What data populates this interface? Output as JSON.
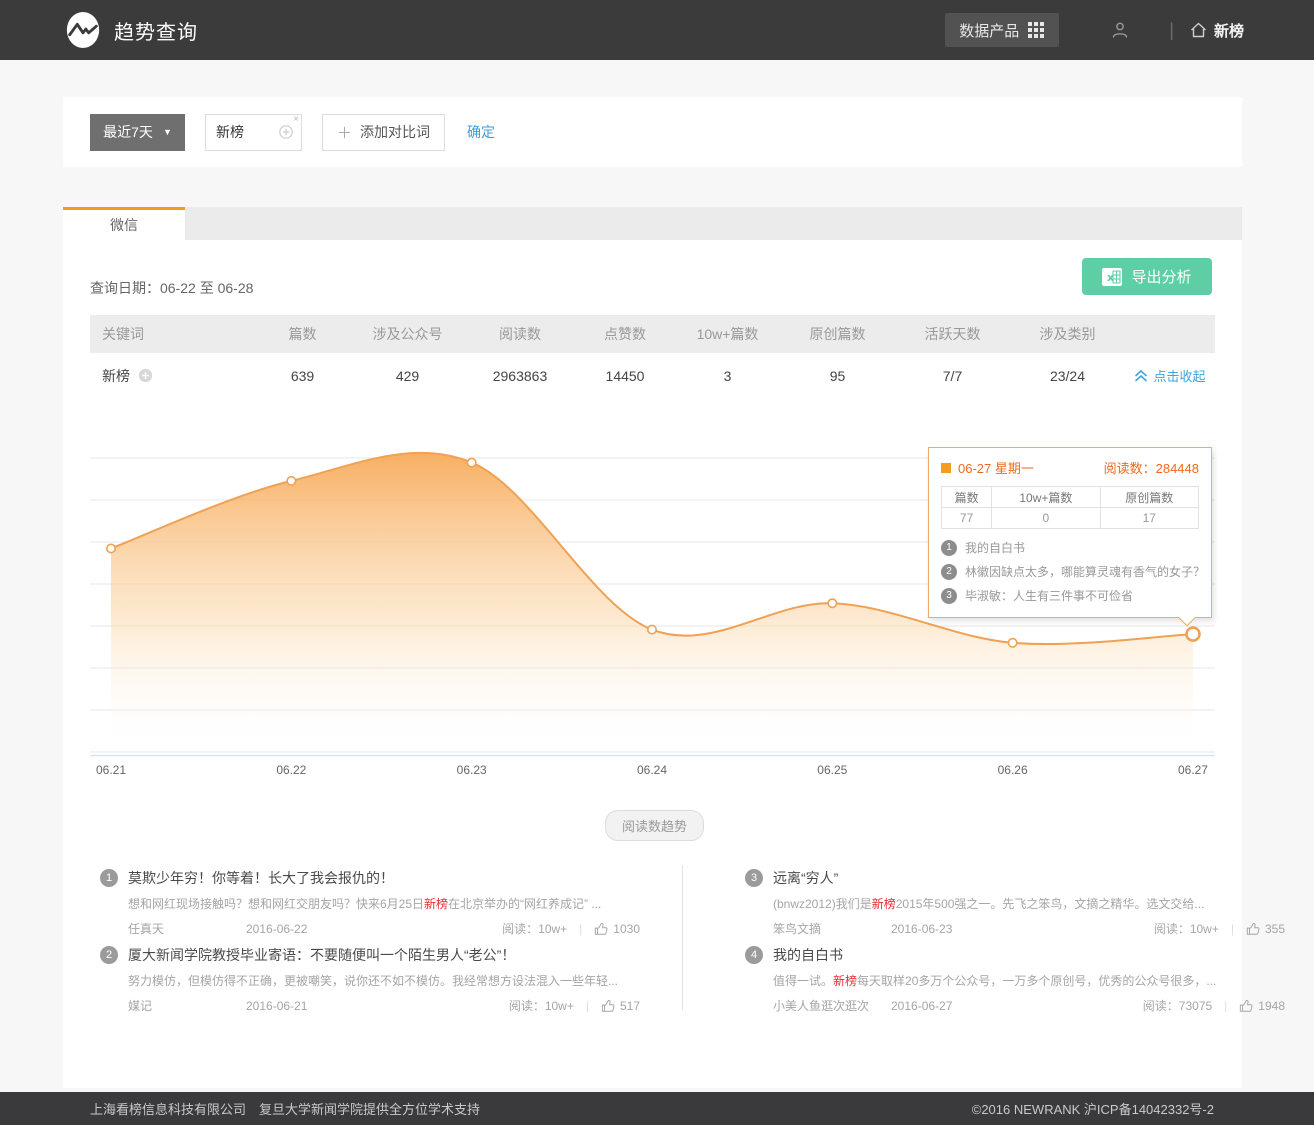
{
  "colors": {
    "accent_orange": "#f39a23",
    "line_orange": "#f0a153",
    "link_blue": "#3aa6e0",
    "export_green": "#5ecfa5",
    "highlight_red": "#e62e2e",
    "topbar_bg": "#3b3b3c"
  },
  "header": {
    "app_title": "趋势查询",
    "data_products_label": "数据产品",
    "home_label": "新榜"
  },
  "filter": {
    "range_label": "最近7天",
    "keyword_value": "新榜",
    "clear_label": "×",
    "add_compare_label": "添加对比词",
    "add_plus": "＋",
    "confirm_label": "确定"
  },
  "tabs": [
    {
      "label": "微信",
      "active": true
    }
  ],
  "panel": {
    "query_date": "查询日期：06-22 至 06-28",
    "export_label": "导出分析"
  },
  "summary_table": {
    "headers": [
      "关键词",
      "篇数",
      "涉及公众号",
      "阅读数",
      "点赞数",
      "10w+篇数",
      "原创篇数",
      "活跃天数",
      "涉及类别"
    ],
    "row": {
      "keyword": "新榜",
      "values": [
        "639",
        "429",
        "2963863",
        "14450",
        "3",
        "95",
        "7/7",
        "23/24"
      ],
      "collapse_label": "点击收起"
    }
  },
  "chart_data": {
    "type": "area",
    "title": "阅读数趋势",
    "x": [
      "06.21",
      "06.22",
      "06.23",
      "06.24",
      "06.25",
      "06.26",
      "06.27"
    ],
    "series": [
      {
        "name": "阅读数",
        "values": [
          486000,
          645000,
          688000,
          295000,
          357000,
          264000,
          284448
        ]
      }
    ],
    "ylim": [
      0,
      760000
    ],
    "grid": true,
    "gridline_count": 8,
    "highlight_index": 6,
    "legend_position": "none"
  },
  "tooltip": {
    "date": "06-27 星期一",
    "reads": "阅读数：284448",
    "table": {
      "headers": [
        "篇数",
        "10w+篇数",
        "原创篇数"
      ],
      "values": [
        "77",
        "0",
        "17"
      ]
    },
    "articles": [
      {
        "rank": "1",
        "title": "我的自白书"
      },
      {
        "rank": "2",
        "title": "林徽因缺点太多，哪能算灵魂有香气的女子？"
      },
      {
        "rank": "3",
        "title": "毕淑敏：人生有三件事不可俭省"
      }
    ]
  },
  "trend_pill": "阅读数趋势",
  "articles": [
    {
      "rank": "1",
      "title": "莫欺少年穷！你等着！长大了我会报仇的！",
      "excerpt_pre": "想和网红现场接触吗？想和网红交朋友吗？快来6月25日",
      "excerpt_hl": "新榜",
      "excerpt_post": "在北京举办的“网红养成记” ...",
      "source": "任真天",
      "date": "2016-06-22",
      "reads": "阅读：10w+",
      "likes": "1030"
    },
    {
      "rank": "2",
      "title": "厦大新闻学院教授毕业寄语：不要随便叫一个陌生男人“老公”！",
      "excerpt_pre": "努力模仿，但模仿得不正确，更被嘲笑，说你还不如不模仿。我经常想方设法混入一些年轻...",
      "excerpt_hl": "",
      "excerpt_post": "",
      "source": "媒记",
      "date": "2016-06-21",
      "reads": "阅读：10w+",
      "likes": "517"
    },
    {
      "rank": "3",
      "title": "远离“穷人”",
      "excerpt_pre": "(bnwz2012)我们是",
      "excerpt_hl": "新榜",
      "excerpt_post": "2015年500强之一。先飞之笨鸟，文摘之精华。选文交给...",
      "source": "笨鸟文摘",
      "date": "2016-06-23",
      "reads": "阅读：10w+",
      "likes": "355"
    },
    {
      "rank": "4",
      "title": "我的自白书",
      "excerpt_pre": "值得一试。",
      "excerpt_hl": "新榜",
      "excerpt_post": "每天取样20多万个公众号，一万多个原创号，优秀的公众号很多，...",
      "source": "小美人鱼逛次逛次",
      "date": "2016-06-27",
      "reads": "阅读：73075",
      "likes": "1948"
    }
  ],
  "footer": {
    "left": "上海看榜信息科技有限公司　复旦大学新闻学院提供全方位学术支持",
    "right": "©2016 NEWRANK 沪ICP备14042332号-2"
  }
}
